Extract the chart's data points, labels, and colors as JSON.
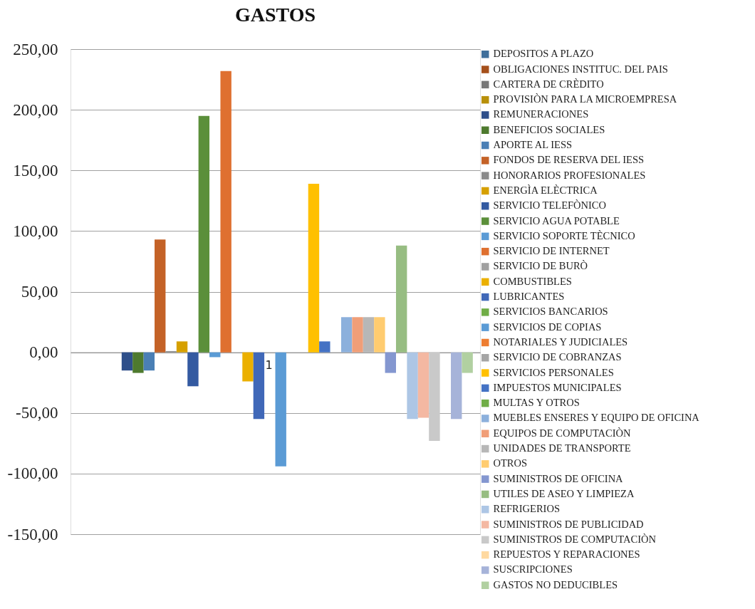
{
  "chart_data": {
    "type": "bar",
    "title": "GASTOS",
    "categories": [
      "1"
    ],
    "ylim": [
      -150,
      250
    ],
    "yticks": [
      {
        "value": -150,
        "label": "-150,00"
      },
      {
        "value": -100,
        "label": "-100,00"
      },
      {
        "value": -50,
        "label": "-50,00"
      },
      {
        "value": 0,
        "label": "0,00"
      },
      {
        "value": 50,
        "label": "50,00"
      },
      {
        "value": 100,
        "label": "100,00"
      },
      {
        "value": 150,
        "label": "150,00"
      },
      {
        "value": 200,
        "label": "200,00"
      },
      {
        "value": 250,
        "label": "250,00"
      }
    ],
    "grid": "y",
    "legend": "right",
    "series": [
      {
        "name": "DEPOSITOS A PLAZO",
        "color": "#3f6f9b",
        "values": [
          0
        ]
      },
      {
        "name": "OBLIGACIONES INSTITUC. DEL PAIS",
        "color": "#a5501b",
        "values": [
          0
        ]
      },
      {
        "name": "CARTERA DE CRÈDITO",
        "color": "#777777",
        "values": [
          0
        ]
      },
      {
        "name": "PROVISIÒN PARA LA MICROEMPRESA",
        "color": "#b8900a",
        "values": [
          0
        ]
      },
      {
        "name": "REMUNERACIONES",
        "color": "#2e4f8a",
        "values": [
          -15
        ]
      },
      {
        "name": "BENEFICIOS SOCIALES",
        "color": "#4e7a2e",
        "values": [
          -17
        ]
      },
      {
        "name": "APORTE AL IESS",
        "color": "#4a7fb5",
        "values": [
          -15
        ]
      },
      {
        "name": "FONDOS DE RESERVA DEL IESS",
        "color": "#c46227",
        "values": [
          93
        ]
      },
      {
        "name": "HONORARIOS PROFESIONALES",
        "color": "#8a8a8a",
        "values": [
          1
        ]
      },
      {
        "name": "ENERGÌA ELÈCTRICA",
        "color": "#d6a000",
        "values": [
          9
        ]
      },
      {
        "name": "SERVICIO TELEFÒNICO",
        "color": "#335aa1",
        "values": [
          -28
        ]
      },
      {
        "name": "SERVICIO AGUA POTABLE",
        "color": "#5b8f3a",
        "values": [
          195
        ]
      },
      {
        "name": "SERVICIO SOPORTE TÈCNICO",
        "color": "#5b9bd5",
        "values": [
          -4
        ]
      },
      {
        "name": "SERVICIO DE INTERNET",
        "color": "#df7030",
        "values": [
          232
        ]
      },
      {
        "name": "SERVICIO DE BURÒ",
        "color": "#a0a0a0",
        "values": [
          0
        ]
      },
      {
        "name": "COMBUSTIBLES",
        "color": "#ebb000",
        "values": [
          -24
        ]
      },
      {
        "name": "LUBRICANTES",
        "color": "#4068b8",
        "values": [
          -55
        ]
      },
      {
        "name": "SERVICIOS BANCARIOS",
        "color": "#70ad47",
        "values": [
          0
        ]
      },
      {
        "name": "SERVICIOS DE COPIAS",
        "color": "#5b9bd5",
        "values": [
          -94
        ]
      },
      {
        "name": "NOTARIALES Y JUDICIALES",
        "color": "#ed7d31",
        "values": [
          0
        ]
      },
      {
        "name": "SERVICIO DE COBRANZAS",
        "color": "#a5a5a5",
        "values": [
          0
        ]
      },
      {
        "name": "SERVICIOS PERSONALES",
        "color": "#ffc000",
        "values": [
          139
        ]
      },
      {
        "name": "IMPUESTOS MUNICIPALES",
        "color": "#4472c4",
        "values": [
          9
        ]
      },
      {
        "name": "MULTAS Y OTROS",
        "color": "#70ad47",
        "values": [
          0
        ]
      },
      {
        "name": "MUEBLES ENSERES Y EQUIPO DE OFICINA",
        "color": "#8cb0dc",
        "values": [
          29
        ]
      },
      {
        "name": "EQUIPOS DE COMPUTACIÒN",
        "color": "#f09e78",
        "values": [
          29
        ]
      },
      {
        "name": "UNIDADES DE TRANSPORTE",
        "color": "#b7b7b7",
        "values": [
          29
        ]
      },
      {
        "name": "OTROS",
        "color": "#ffcc70",
        "values": [
          29
        ]
      },
      {
        "name": "SUMINISTROS DE OFICINA",
        "color": "#8497d0",
        "values": [
          -17
        ]
      },
      {
        "name": "UTILES DE ASEO Y LIMPIEZA",
        "color": "#97bd82",
        "values": [
          88
        ]
      },
      {
        "name": "REFRIGERIOS",
        "color": "#adc6e5",
        "values": [
          -55
        ]
      },
      {
        "name": "SUMINISTROS DE PUBLICIDAD",
        "color": "#f4b8a2",
        "values": [
          -54
        ]
      },
      {
        "name": "SUMINISTROS DE COMPUTACIÒN",
        "color": "#c9c9c9",
        "values": [
          -73
        ]
      },
      {
        "name": "REPUESTOS Y REPARACIONES",
        "color": "#ffd9a0",
        "values": [
          0
        ]
      },
      {
        "name": "SUSCRIPCIONES",
        "color": "#a6b3d9",
        "values": [
          -55
        ]
      },
      {
        "name": "GASTOS NO DEDUCIBLES",
        "color": "#b1d0a1",
        "values": [
          -17
        ]
      }
    ]
  }
}
